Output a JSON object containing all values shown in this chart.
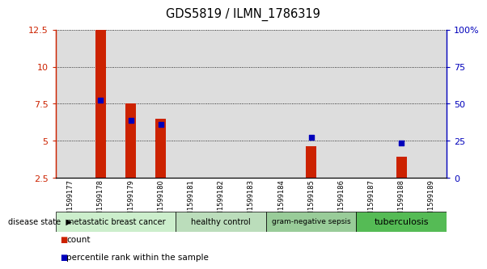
{
  "title": "GDS5819 / ILMN_1786319",
  "samples": [
    "GSM1599177",
    "GSM1599178",
    "GSM1599179",
    "GSM1599180",
    "GSM1599181",
    "GSM1599182",
    "GSM1599183",
    "GSM1599184",
    "GSM1599185",
    "GSM1599186",
    "GSM1599187",
    "GSM1599188",
    "GSM1599189"
  ],
  "count_values": [
    null,
    12.5,
    7.5,
    6.5,
    null,
    null,
    null,
    null,
    4.6,
    null,
    null,
    3.9,
    null
  ],
  "percentile_values": [
    null,
    7.75,
    6.35,
    6.1,
    null,
    null,
    null,
    null,
    5.2,
    null,
    null,
    4.85,
    null
  ],
  "ylim_left": [
    2.5,
    12.5
  ],
  "left_ticks": [
    2.5,
    5.0,
    7.5,
    10.0,
    12.5
  ],
  "left_tick_labels": [
    "2.5",
    "5",
    "7.5",
    "10",
    "12.5"
  ],
  "ylim_right": [
    0,
    100
  ],
  "right_ticks": [
    0,
    25,
    50,
    75,
    100
  ],
  "right_tick_labels": [
    "0",
    "25",
    "50",
    "75",
    "100%"
  ],
  "right_top_label": "100%",
  "disease_groups": [
    {
      "label": "metastatic breast cancer",
      "start": 0,
      "end": 4,
      "color": "#cceecc",
      "font_size": 7
    },
    {
      "label": "healthy control",
      "start": 4,
      "end": 7,
      "color": "#bbddbb",
      "font_size": 7
    },
    {
      "label": "gram-negative sepsis",
      "start": 7,
      "end": 10,
      "color": "#99cc99",
      "font_size": 6.5
    },
    {
      "label": "tuberculosis",
      "start": 10,
      "end": 13,
      "color": "#55bb55",
      "font_size": 8
    }
  ],
  "bar_color": "#cc2200",
  "dot_color": "#0000bb",
  "left_axis_color": "#cc2200",
  "right_axis_color": "#0000bb",
  "bar_width": 0.35,
  "dot_size": 18,
  "col_bg_color": "#dddddd",
  "disease_state_label": "disease state",
  "legend_count_label": "count",
  "legend_percentile_label": "percentile rank within the sample"
}
